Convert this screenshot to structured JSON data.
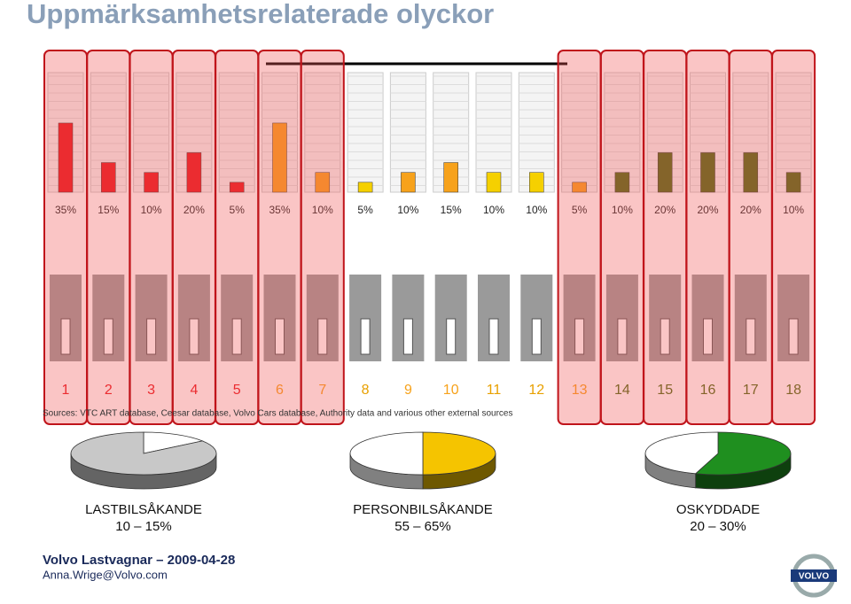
{
  "chart_data": [
    {
      "type": "bar",
      "title": "Uppmärksamhetsrelaterade olyckor",
      "categories": [
        "1",
        "2",
        "3",
        "4",
        "5",
        "6",
        "7",
        "8",
        "9",
        "10",
        "11",
        "12",
        "13",
        "14",
        "15",
        "16",
        "17",
        "18"
      ],
      "values": [
        35,
        15,
        10,
        20,
        5,
        35,
        10,
        5,
        10,
        15,
        10,
        10,
        5,
        10,
        20,
        20,
        20,
        10
      ],
      "value_labels": [
        "35%",
        "15%",
        "10%",
        "20%",
        "5%",
        "35%",
        "10%",
        "5%",
        "10%",
        "15%",
        "10%",
        "10%",
        "5%",
        "10%",
        "20%",
        "20%",
        "20%",
        "10%"
      ],
      "colors": [
        "#e8141b",
        "#e8141b",
        "#e8141b",
        "#e8141b",
        "#e8141b",
        "#f7a21b",
        "#f7a21b",
        "#f5d000",
        "#f7a21b",
        "#f7a21b",
        "#f5d000",
        "#f5d000",
        "#f7a21b",
        "#4a6a12",
        "#4a6a12",
        "#4a6a12",
        "#4a6a12",
        "#4a6a12"
      ],
      "source": "Sources: VTC ART database, Ceesar database, Volvo Cars database, Authority data and various other external sources"
    },
    {
      "type": "pie",
      "title": "LASTBILSÅKANDE",
      "subtitle": "10 – 15%",
      "values": [
        15,
        85
      ],
      "colors": [
        "#ffffff",
        "#c8c8c8"
      ]
    },
    {
      "type": "pie",
      "title": "PERSONBILSÅKANDE",
      "subtitle": "55 – 65%",
      "values": [
        50,
        50
      ],
      "colors": [
        "#f5c400",
        "#ffffff"
      ]
    },
    {
      "type": "pie",
      "title": "OSKYDDADE",
      "subtitle": "20 – 30%",
      "values": [
        55,
        45
      ],
      "colors": [
        "#1f8f1f",
        "#ffffff"
      ]
    }
  ],
  "footer": {
    "company": "Volvo Lastvagnar – 2009-04-28",
    "email": "Anna.Wrige@Volvo.com",
    "logo": "VOLVO"
  }
}
